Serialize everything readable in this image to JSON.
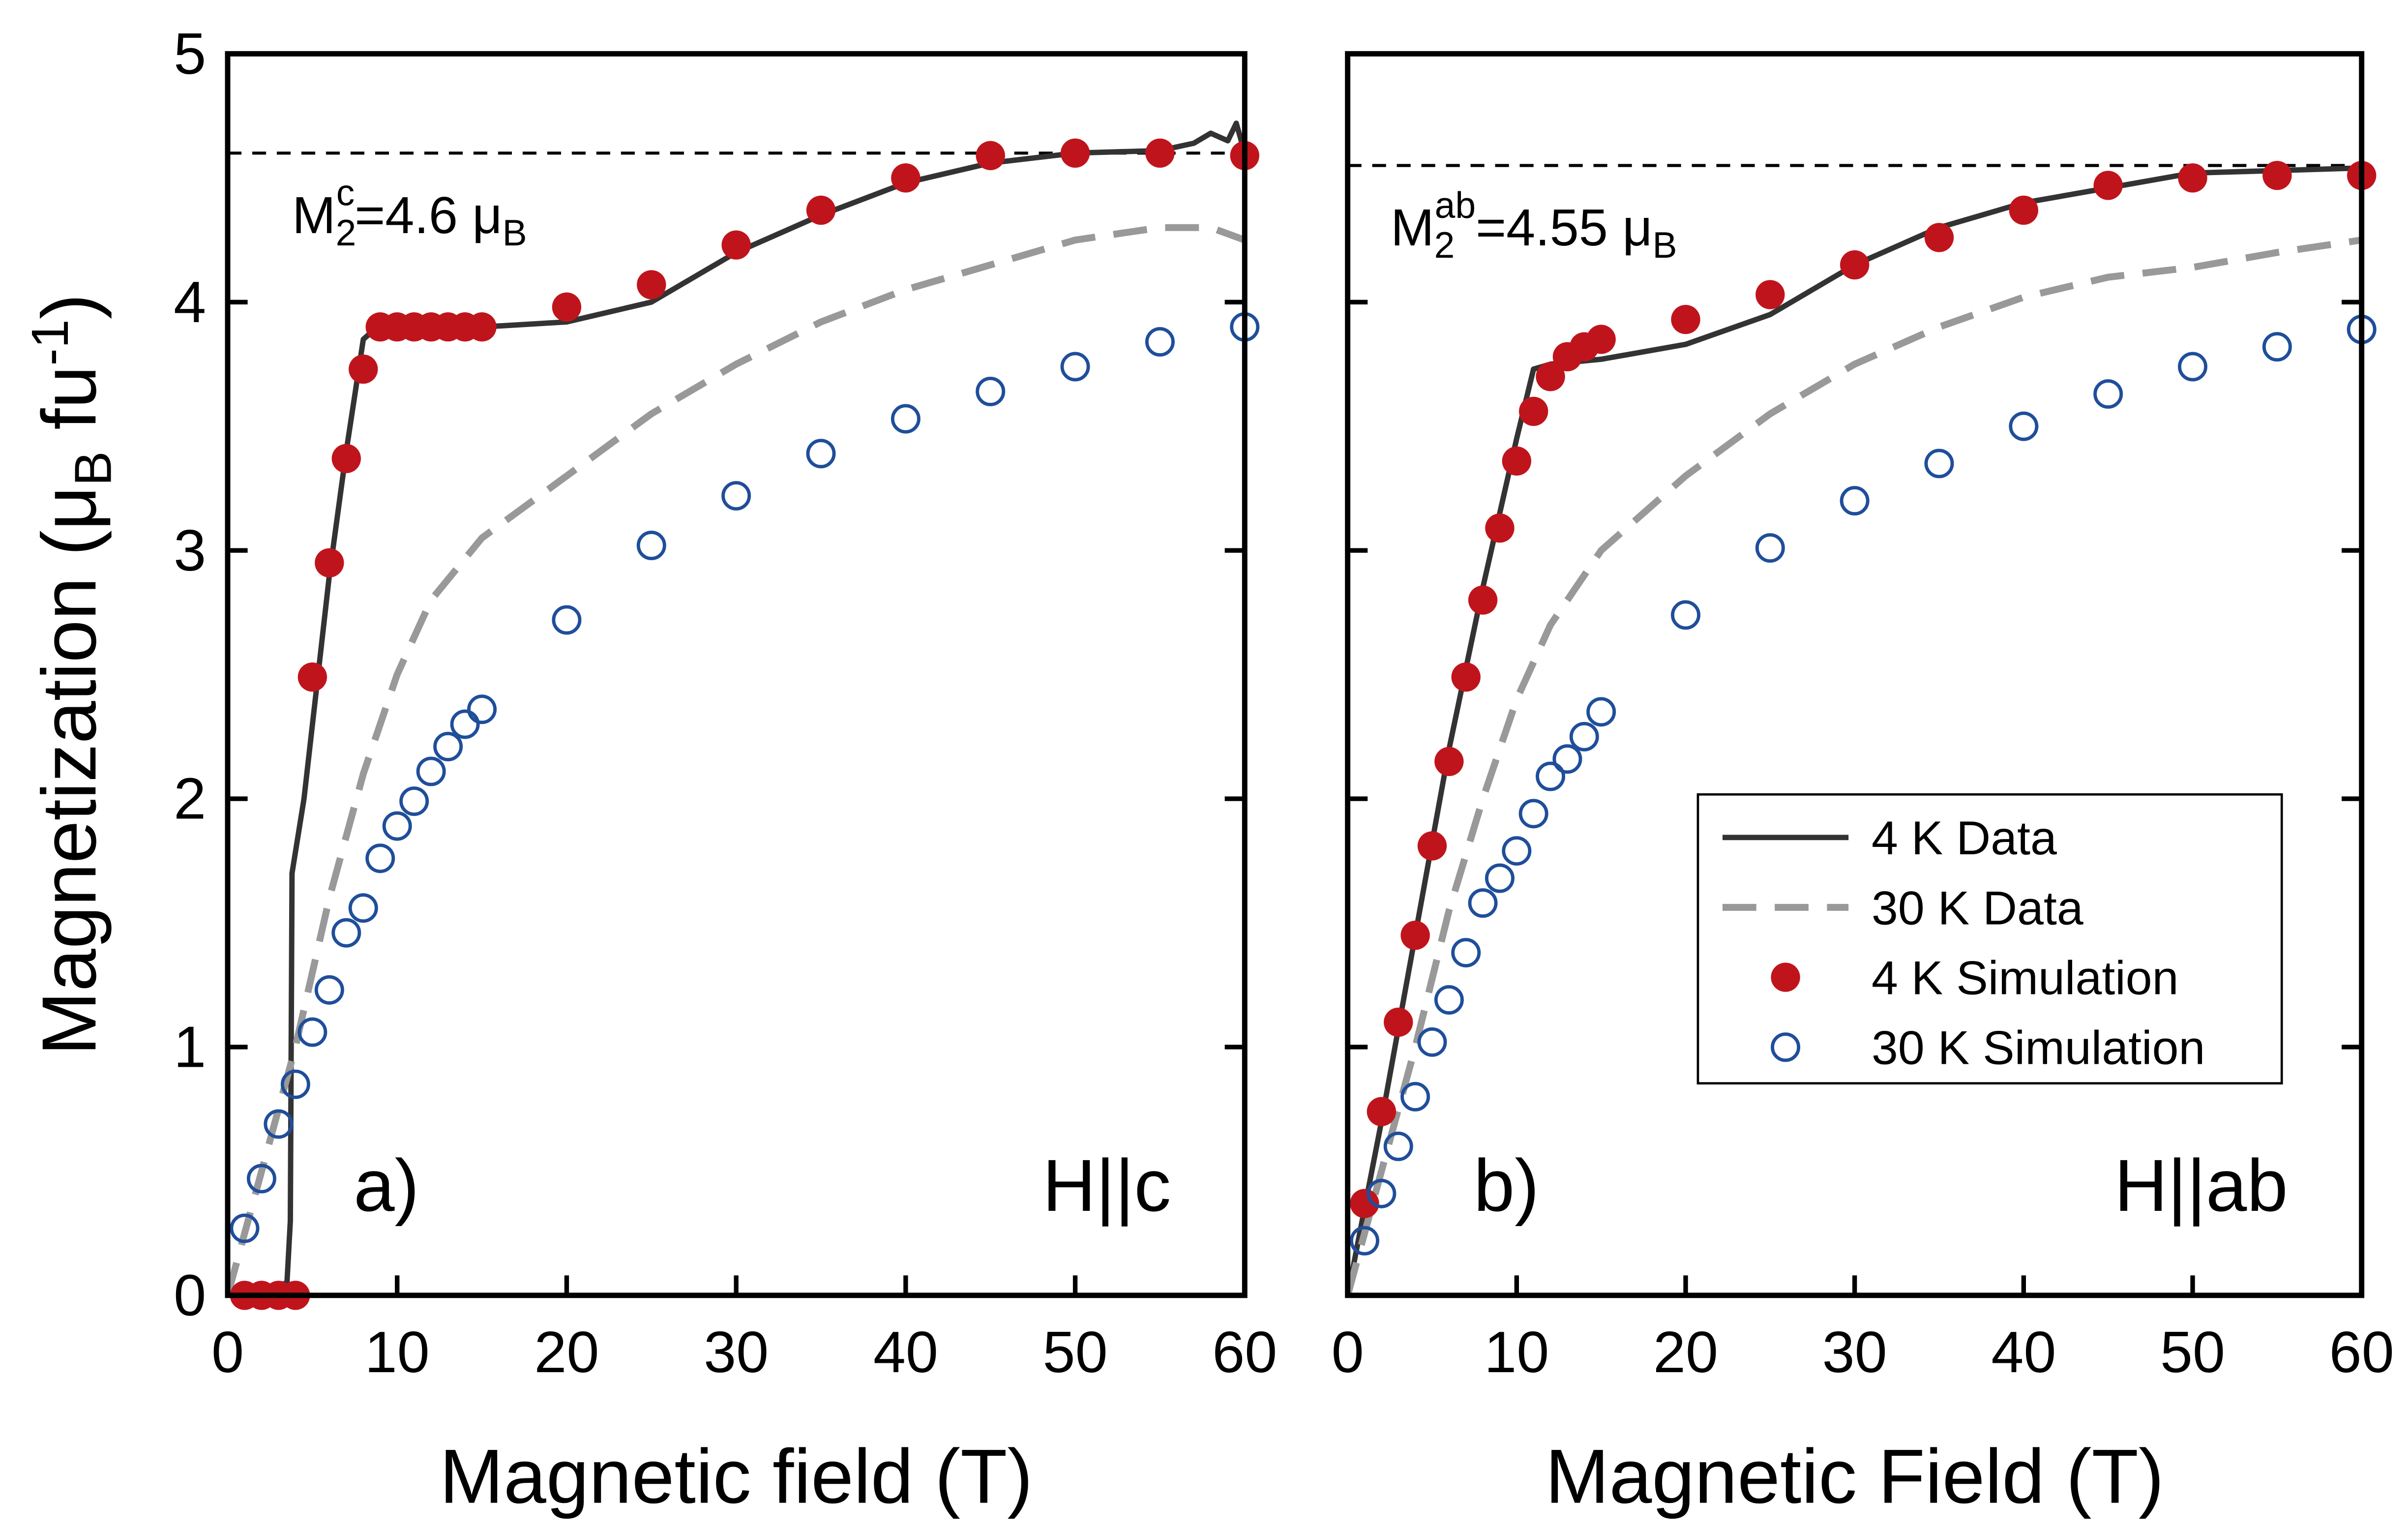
{
  "chart_data": [
    {
      "type": "line",
      "panel_label": "a)",
      "field_label": "H||c",
      "y_label_parts": [
        "Magnetization (μ",
        "B",
        " fu",
        "-1",
        ")"
      ],
      "x_label": "Magnetic field (T)",
      "xlim": [
        0,
        60
      ],
      "xticks": [
        0,
        10,
        20,
        30,
        40,
        50,
        60
      ],
      "ylim": [
        0,
        5
      ],
      "yticks": [
        0,
        1,
        2,
        3,
        4,
        5
      ],
      "show_ytick_labels": true,
      "hline": 4.6,
      "annotation": {
        "main": "M",
        "sub": "2",
        "sup": "c",
        "rest": "=4.6 μ",
        "rest_sub": "B"
      },
      "legend": false,
      "series": [
        {
          "name": "4 K Data",
          "style": "solid",
          "color": "#333333",
          "x": [
            0,
            2,
            3.5,
            3.7,
            3.8,
            4.5,
            6,
            7,
            8,
            8.5,
            15,
            20,
            25,
            28,
            30,
            35,
            40,
            45,
            50,
            55,
            57,
            58,
            59,
            59.5,
            60
          ],
          "values": [
            0,
            0.02,
            0.05,
            0.3,
            1.7,
            2.0,
            2.9,
            3.4,
            3.85,
            3.88,
            3.9,
            3.92,
            4.0,
            4.12,
            4.2,
            4.35,
            4.48,
            4.56,
            4.6,
            4.61,
            4.64,
            4.68,
            4.65,
            4.72,
            4.6
          ]
        },
        {
          "name": "30 K Data",
          "style": "dashed",
          "color": "#999999",
          "x": [
            0,
            2,
            4,
            6,
            8,
            10,
            12,
            15,
            20,
            25,
            30,
            35,
            40,
            45,
            50,
            55,
            58,
            60
          ],
          "values": [
            0,
            0.5,
            1.0,
            1.6,
            2.1,
            2.5,
            2.8,
            3.05,
            3.3,
            3.55,
            3.75,
            3.92,
            4.05,
            4.15,
            4.25,
            4.3,
            4.3,
            4.25
          ]
        },
        {
          "name": "4 K Simulation",
          "style": "filled",
          "color": "#c0141c",
          "x": [
            1,
            2,
            3,
            4,
            5,
            6,
            7,
            8,
            9,
            10,
            11,
            12,
            13,
            14,
            15,
            20,
            25,
            30,
            35,
            40,
            45,
            50,
            55,
            60
          ],
          "values": [
            0,
            0,
            0,
            0,
            2.49,
            2.95,
            3.37,
            3.73,
            3.9,
            3.9,
            3.9,
            3.9,
            3.9,
            3.9,
            3.9,
            3.98,
            4.07,
            4.23,
            4.37,
            4.5,
            4.59,
            4.6,
            4.6,
            4.59
          ]
        },
        {
          "name": "30 K Simulation",
          "style": "open",
          "color": "#1f4e9a",
          "x": [
            1,
            2,
            3,
            4,
            5,
            6,
            7,
            8,
            9,
            10,
            11,
            12,
            13,
            14,
            15,
            20,
            25,
            30,
            35,
            40,
            45,
            50,
            55,
            60
          ],
          "values": [
            0.27,
            0.47,
            0.69,
            0.85,
            1.06,
            1.23,
            1.46,
            1.56,
            1.76,
            1.89,
            1.99,
            2.11,
            2.21,
            2.3,
            2.36,
            2.72,
            3.02,
            3.22,
            3.39,
            3.53,
            3.64,
            3.74,
            3.84,
            3.9
          ]
        }
      ]
    },
    {
      "type": "line",
      "panel_label": "b)",
      "field_label": "H||ab",
      "x_label": "Magnetic Field (T)",
      "xlim": [
        0,
        60
      ],
      "xticks": [
        0,
        10,
        20,
        30,
        40,
        50,
        60
      ],
      "ylim": [
        0,
        5
      ],
      "yticks": [
        0,
        1,
        2,
        3,
        4,
        5
      ],
      "show_ytick_labels": false,
      "hline": 4.55,
      "annotation": {
        "main": "M",
        "sub": "2",
        "sup": "ab",
        "rest": "=4.55 μ",
        "rest_sub": "B"
      },
      "legend": "lower right",
      "series": [
        {
          "name": "4 K Data",
          "style": "solid",
          "color": "#333333",
          "x": [
            0,
            2,
            4,
            6,
            8,
            10,
            11,
            12,
            15,
            20,
            25,
            30,
            35,
            40,
            45,
            50,
            55,
            60
          ],
          "values": [
            0,
            0.7,
            1.45,
            2.2,
            2.85,
            3.45,
            3.73,
            3.75,
            3.77,
            3.83,
            3.95,
            4.15,
            4.3,
            4.4,
            4.46,
            4.52,
            4.53,
            4.54
          ]
        },
        {
          "name": "30 K Data",
          "style": "dashed",
          "color": "#999999",
          "x": [
            0,
            2,
            4,
            6,
            8,
            10,
            12,
            15,
            20,
            25,
            30,
            35,
            40,
            45,
            50,
            55,
            60
          ],
          "values": [
            0,
            0.5,
            1.0,
            1.55,
            2.0,
            2.4,
            2.7,
            3.0,
            3.3,
            3.55,
            3.75,
            3.9,
            4.02,
            4.1,
            4.14,
            4.2,
            4.25
          ]
        },
        {
          "name": "4 K Simulation",
          "style": "filled",
          "color": "#c0141c",
          "x": [
            1,
            2,
            3,
            4,
            5,
            6,
            7,
            8,
            9,
            10,
            11,
            12,
            13,
            14,
            15,
            20,
            25,
            30,
            35,
            40,
            45,
            50,
            55,
            60
          ],
          "values": [
            0.37,
            0.74,
            1.1,
            1.45,
            1.81,
            2.15,
            2.49,
            2.8,
            3.09,
            3.36,
            3.56,
            3.7,
            3.78,
            3.82,
            3.85,
            3.93,
            4.03,
            4.15,
            4.26,
            4.37,
            4.47,
            4.5,
            4.51,
            4.51
          ]
        },
        {
          "name": "30 K Simulation",
          "style": "open",
          "color": "#1f4e9a",
          "x": [
            1,
            2,
            3,
            4,
            5,
            6,
            7,
            8,
            9,
            10,
            11,
            12,
            13,
            14,
            15,
            20,
            25,
            30,
            35,
            40,
            45,
            50,
            55,
            60
          ],
          "values": [
            0.22,
            0.41,
            0.6,
            0.8,
            1.02,
            1.19,
            1.38,
            1.58,
            1.68,
            1.79,
            1.94,
            2.09,
            2.16,
            2.25,
            2.35,
            2.74,
            3.01,
            3.2,
            3.35,
            3.5,
            3.63,
            3.74,
            3.82,
            3.89
          ]
        }
      ]
    }
  ]
}
